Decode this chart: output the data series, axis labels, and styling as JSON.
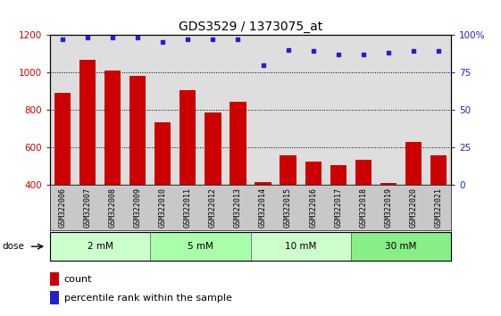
{
  "title": "GDS3529 / 1373075_at",
  "samples": [
    "GSM322006",
    "GSM322007",
    "GSM322008",
    "GSM322009",
    "GSM322010",
    "GSM322011",
    "GSM322012",
    "GSM322013",
    "GSM322014",
    "GSM322015",
    "GSM322016",
    "GSM322017",
    "GSM322018",
    "GSM322019",
    "GSM322020",
    "GSM322021"
  ],
  "bar_values": [
    890,
    1065,
    1010,
    980,
    735,
    905,
    785,
    845,
    415,
    558,
    522,
    503,
    535,
    410,
    630,
    558
  ],
  "percentile_values": [
    97,
    98,
    98,
    98,
    95,
    97,
    97,
    97,
    80,
    90,
    89,
    87,
    87,
    88,
    89,
    89
  ],
  "dose_colors": [
    "#ccffcc",
    "#aaffaa",
    "#ccffcc",
    "#88ee88"
  ],
  "dose_labels": [
    "2 mM",
    "5 mM",
    "10 mM",
    "30 mM"
  ],
  "dose_ranges": [
    [
      0,
      4
    ],
    [
      4,
      8
    ],
    [
      8,
      12
    ],
    [
      12,
      16
    ]
  ],
  "bar_color": "#cc0000",
  "dot_color": "#2222cc",
  "ylim_left": [
    400,
    1200
  ],
  "ylim_right": [
    0,
    100
  ],
  "yticks_left": [
    400,
    600,
    800,
    1000,
    1200
  ],
  "yticks_right": [
    0,
    25,
    50,
    75,
    100
  ],
  "grid_lines": [
    600,
    800,
    1000
  ],
  "plot_bg_color": "#dedede",
  "title_fontsize": 10,
  "bar_width": 0.65
}
